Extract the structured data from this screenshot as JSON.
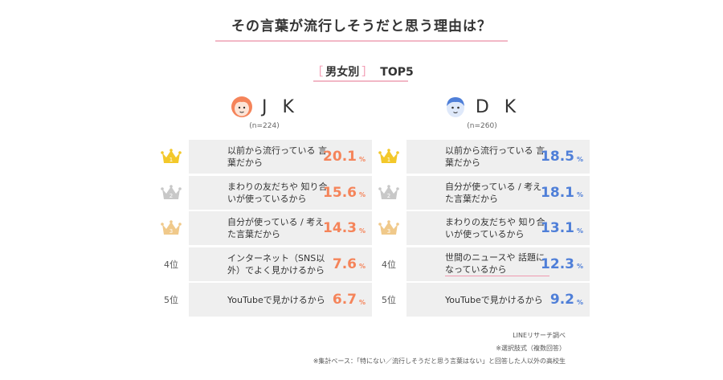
{
  "title": "その言葉が流行しそうだと思う理由は？",
  "subtitle": {
    "bracket_open": "［",
    "label": "男女別",
    "bracket_close": "］",
    "top": "TOP5"
  },
  "colors": {
    "jk_accent": "#f5845a",
    "dk_accent": "#4f7fd8",
    "pink_rule": "#f2b8c6",
    "gold": "#f3c82a",
    "silver": "#c8c8c8",
    "bronze": "#f0c98a"
  },
  "chart_data": [
    {
      "type": "table",
      "group": "J K",
      "n_label": "(n=224)",
      "unit": "%",
      "rows": [
        {
          "rank": 1,
          "rank_label": "1",
          "reason": "以前から流行っている 言葉だから",
          "value_label": "20.1",
          "value": 20.1,
          "icon": "gold-crown-icon"
        },
        {
          "rank": 2,
          "rank_label": "2",
          "reason": "まわりの友だちや 知り合いが使っているから",
          "value_label": "15.6",
          "value": 15.6,
          "icon": "silver-crown-icon"
        },
        {
          "rank": 3,
          "rank_label": "3",
          "reason": "自分が使っている / 考えた言葉だから",
          "value_label": "14.3",
          "value": 14.3,
          "icon": "bronze-crown-icon"
        },
        {
          "rank": 4,
          "rank_label": "4位",
          "reason": "インターネット（SNS以外）でよく見かけるから",
          "value_label": "7.6",
          "value": 7.6
        },
        {
          "rank": 5,
          "rank_label": "5位",
          "reason": "YouTubeで見かけるから",
          "value_label": "6.7",
          "value": 6.7
        }
      ]
    },
    {
      "type": "table",
      "group": "D K",
      "n_label": "(n=260)",
      "unit": "%",
      "rows": [
        {
          "rank": 1,
          "rank_label": "1",
          "reason": "以前から流行っている 言葉だから",
          "value_label": "18.5",
          "value": 18.5,
          "icon": "gold-crown-icon"
        },
        {
          "rank": 2,
          "rank_label": "2",
          "reason": "自分が使っている / 考えた言葉だから",
          "value_label": "18.1",
          "value": 18.1,
          "icon": "silver-crown-icon"
        },
        {
          "rank": 3,
          "rank_label": "3",
          "reason": "まわりの友だちや 知り合いが使っているから",
          "value_label": "13.1",
          "value": 13.1,
          "icon": "bronze-crown-icon"
        },
        {
          "rank": 4,
          "rank_label": "4位",
          "reason": "世間のニュースや 話題になっているから",
          "value_label": "12.3",
          "value": 12.3
        },
        {
          "rank": 5,
          "rank_label": "5位",
          "reason": "YouTubeで見かけるから",
          "value_label": "9.2",
          "value": 9.2
        }
      ]
    }
  ],
  "notes": [
    "LINEリサーチ調べ",
    "※選択肢式（複数回答）",
    "※集計ベース：「特にない／流行しそうだと思う言葉はない」と回答した人以外の高校生"
  ]
}
